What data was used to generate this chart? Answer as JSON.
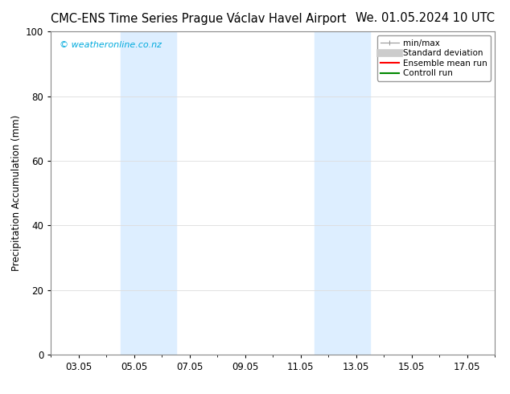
{
  "title_left": "CMC-ENS Time Series Prague Václav Havel Airport",
  "title_right": "We. 01.05.2024 10 UTC",
  "ylabel": "Precipitation Accumulation (mm)",
  "watermark": "© weatheronline.co.nz",
  "watermark_color": "#00aadd",
  "ylim": [
    0,
    100
  ],
  "yticks": [
    0,
    20,
    40,
    60,
    80,
    100
  ],
  "x_tick_labels": [
    "03.05",
    "05.05",
    "07.05",
    "09.05",
    "11.05",
    "13.05",
    "15.05",
    "17.05"
  ],
  "x_tick_positions": [
    2,
    4,
    6,
    8,
    10,
    12,
    14,
    16
  ],
  "xlim": [
    1,
    17
  ],
  "shaded_bands": [
    {
      "x_start": 3.5,
      "x_end": 5.5,
      "color": "#ddeeff",
      "alpha": 1.0
    },
    {
      "x_start": 10.5,
      "x_end": 12.5,
      "color": "#ddeeff",
      "alpha": 1.0
    }
  ],
  "legend_entries": [
    {
      "label": "min/max",
      "color": "#aaaaaa",
      "lw": 1
    },
    {
      "label": "Standard deviation",
      "color": "#cccccc",
      "lw": 6
    },
    {
      "label": "Ensemble mean run",
      "color": "#ff0000",
      "lw": 1.5
    },
    {
      "label": "Controll run",
      "color": "#008800",
      "lw": 1.5
    }
  ],
  "background_color": "#ffffff",
  "plot_bg_color": "#ffffff",
  "grid_color": "#dddddd",
  "title_fontsize": 10.5,
  "tick_fontsize": 8.5,
  "legend_fontsize": 7.5,
  "ylabel_fontsize": 8.5,
  "watermark_fontsize": 8
}
